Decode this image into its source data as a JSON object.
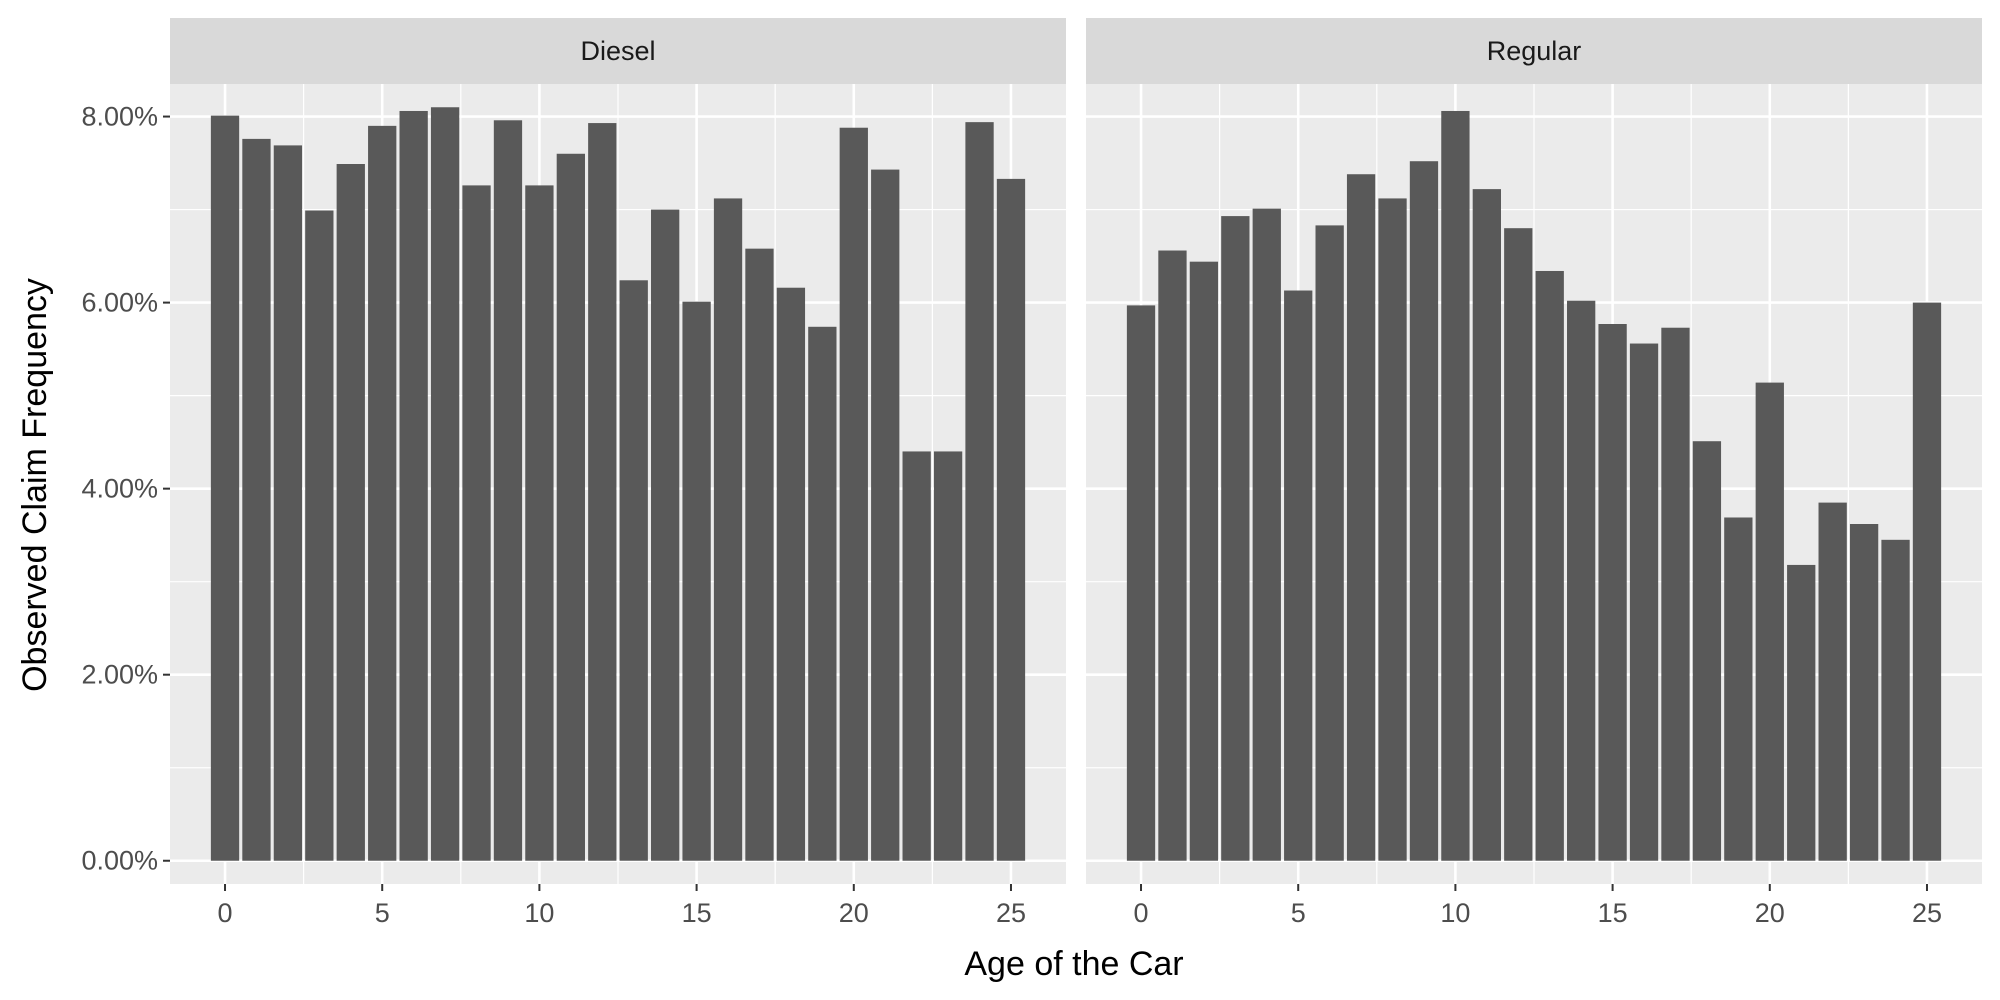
{
  "chart_data": {
    "type": "bar",
    "facet_type": "facet_wrap",
    "xlabel": "Age of the Car",
    "ylabel": "Observed Claim Frequency",
    "ylim": [
      -0.0025,
      0.0835
    ],
    "xlim": [
      -1.75,
      26.75
    ],
    "x_ticks": [
      0,
      5,
      10,
      15,
      20,
      25
    ],
    "x_tick_labels": [
      "0",
      "5",
      "10",
      "15",
      "20",
      "25"
    ],
    "y_ticks": [
      0,
      0.02,
      0.04,
      0.06,
      0.08
    ],
    "y_tick_labels": [
      "0.00%",
      "2.00%",
      "4.00%",
      "6.00%",
      "8.00%"
    ],
    "grid": true,
    "bar_color": "#595959",
    "panel_background": "#EBEBEB",
    "strip_background": "#D9D9D9",
    "grid_major_color": "#FFFFFF",
    "panels": [
      {
        "strip_label": "Diesel",
        "x": [
          0,
          1,
          2,
          3,
          4,
          5,
          6,
          7,
          8,
          9,
          10,
          11,
          12,
          13,
          14,
          15,
          16,
          17,
          18,
          19,
          20,
          21,
          22,
          23,
          24,
          25
        ],
        "values": [
          0.0801,
          0.0776,
          0.0769,
          0.0699,
          0.0749,
          0.079,
          0.0806,
          0.081,
          0.0726,
          0.0796,
          0.0726,
          0.076,
          0.0793,
          0.0624,
          0.07,
          0.0601,
          0.0712,
          0.0658,
          0.0616,
          0.0574,
          0.0788,
          0.0743,
          0.044,
          0.044,
          0.0794,
          0.0733
        ]
      },
      {
        "strip_label": "Regular",
        "x": [
          0,
          1,
          2,
          3,
          4,
          5,
          6,
          7,
          8,
          9,
          10,
          11,
          12,
          13,
          14,
          15,
          16,
          17,
          18,
          19,
          20,
          21,
          22,
          23,
          24,
          25
        ],
        "values": [
          0.0597,
          0.0656,
          0.0644,
          0.0693,
          0.0701,
          0.0613,
          0.0683,
          0.0738,
          0.0712,
          0.0752,
          0.0806,
          0.0722,
          0.068,
          0.0634,
          0.0602,
          0.0577,
          0.0556,
          0.0573,
          0.0451,
          0.0369,
          0.0514,
          0.0318,
          0.0385,
          0.0362,
          0.0345,
          0.06
        ]
      }
    ]
  }
}
